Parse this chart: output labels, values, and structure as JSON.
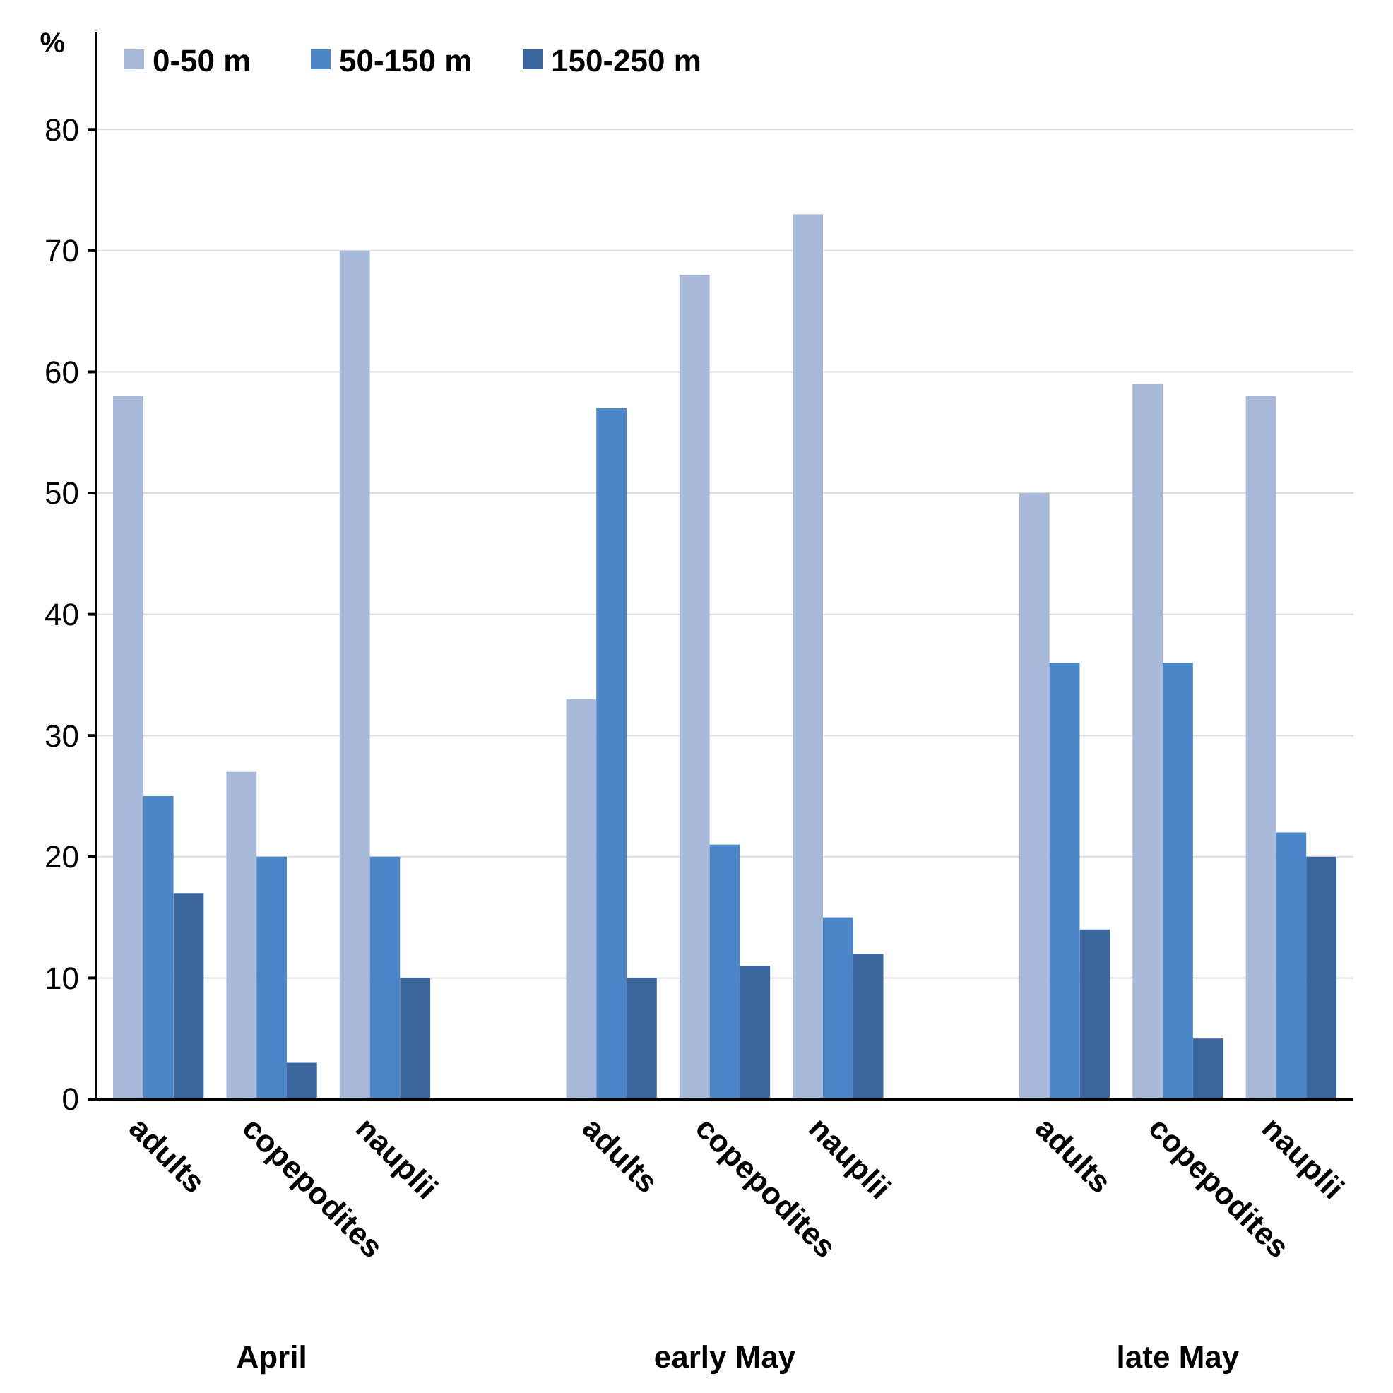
{
  "chart_data": {
    "type": "bar",
    "ylabel": "%",
    "categories": [
      "adults",
      "copepodites",
      "nauplii",
      null,
      "adults",
      "copepodites",
      "nauplii",
      null,
      "adults",
      "copepodites",
      "nauplii"
    ],
    "series": [
      {
        "name": "0-50 m",
        "color": "#a8b9da",
        "values": [
          58,
          27,
          70,
          null,
          33,
          68,
          73,
          null,
          50,
          59,
          58
        ]
      },
      {
        "name": "50-150 m",
        "color": "#4a86c8",
        "values": [
          25,
          20,
          20,
          null,
          57,
          21,
          15,
          null,
          36,
          36,
          22
        ]
      },
      {
        "name": "150-250 m",
        "color": "#3b659d",
        "values": [
          17,
          3,
          10,
          null,
          10,
          11,
          12,
          null,
          14,
          5,
          20
        ]
      }
    ],
    "ylim": [
      0,
      88
    ],
    "yticks": [
      0,
      10,
      20,
      30,
      40,
      50,
      60,
      70,
      80
    ],
    "grid": "y",
    "legend": "top left",
    "annotations": [
      "April",
      "early May",
      "late May"
    ]
  }
}
